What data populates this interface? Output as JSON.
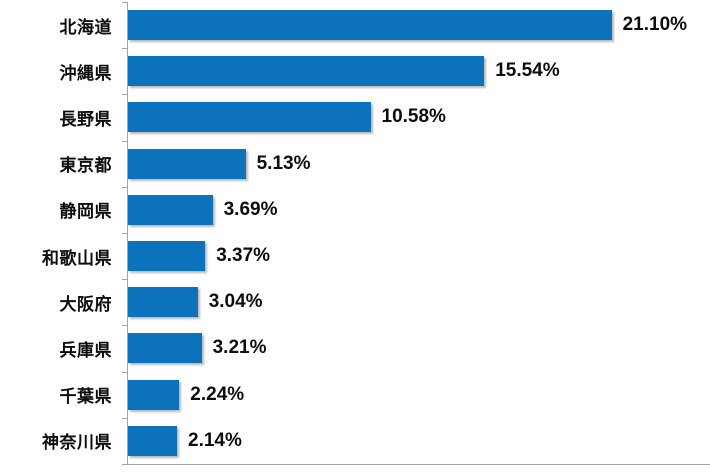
{
  "chart_data": {
    "type": "bar",
    "orientation": "horizontal",
    "title": "",
    "xlabel": "",
    "ylabel": "",
    "categories": [
      "北海道",
      "沖縄県",
      "長野県",
      "東京都",
      "静岡県",
      "和歌山県",
      "大阪府",
      "兵庫県",
      "千葉県",
      "神奈川県"
    ],
    "values": [
      21.1,
      15.54,
      10.58,
      5.13,
      3.69,
      3.37,
      3.04,
      3.21,
      2.24,
      2.14
    ],
    "value_labels": [
      "21.10%",
      "15.54%",
      "10.58%",
      "5.13%",
      "3.69%",
      "3.37%",
      "3.04%",
      "3.21%",
      "2.24%",
      "2.14%"
    ],
    "xlim": [
      0,
      25
    ],
    "grid": false,
    "legend": "none",
    "bar_color": "#0d72bc",
    "axis_color": "#a6a6a6",
    "text_color": "#0d0d0d",
    "background_color": "#ffffff"
  }
}
